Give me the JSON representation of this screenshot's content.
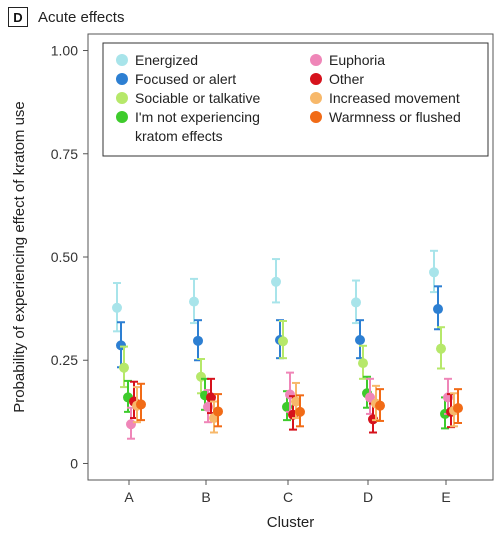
{
  "panel": {
    "badge": "D",
    "title": "Acute effects"
  },
  "chart_data": {
    "type": "scatter",
    "title": "Acute effects",
    "xlabel": "Cluster",
    "ylabel": "Probability of experiencing effect of kratom use",
    "categories": [
      "A",
      "B",
      "C",
      "D",
      "E"
    ],
    "ylim": [
      -0.04,
      1.04
    ],
    "yticks": [
      0,
      0.25,
      0.5,
      0.75,
      1.0
    ],
    "ytick_labels": [
      "0",
      "0.25",
      "0.50",
      "0.75",
      "1.00"
    ],
    "grid": false,
    "legend_position": "top",
    "series": [
      {
        "name": "Energized",
        "color": "#a8e4ea",
        "values": [
          0.377,
          0.392,
          0.44,
          0.39,
          0.463
        ],
        "lower": [
          0.32,
          0.34,
          0.39,
          0.34,
          0.415
        ],
        "upper": [
          0.437,
          0.447,
          0.495,
          0.443,
          0.515
        ]
      },
      {
        "name": "Focused or alert",
        "color": "#2d7fd2",
        "values": [
          0.286,
          0.297,
          0.299,
          0.299,
          0.374
        ],
        "lower": [
          0.233,
          0.25,
          0.255,
          0.255,
          0.325
        ],
        "upper": [
          0.342,
          0.347,
          0.347,
          0.347,
          0.429
        ]
      },
      {
        "name": "Sociable or talkative",
        "color": "#b6e86a",
        "values": [
          0.232,
          0.21,
          0.296,
          0.243,
          0.278
        ],
        "lower": [
          0.185,
          0.17,
          0.255,
          0.205,
          0.23
        ],
        "upper": [
          0.283,
          0.253,
          0.345,
          0.285,
          0.33
        ]
      },
      {
        "name": "I'm not experiencing kratom effects",
        "color": "#3ecb2c",
        "values": [
          0.16,
          0.165,
          0.137,
          0.17,
          0.12
        ],
        "lower": [
          0.125,
          0.13,
          0.105,
          0.135,
          0.085
        ],
        "upper": [
          0.2,
          0.205,
          0.175,
          0.21,
          0.16
        ]
      },
      {
        "name": "Euphoria",
        "color": "#ef86b8",
        "values": [
          0.095,
          0.137,
          0.167,
          0.16,
          0.16
        ],
        "lower": [
          0.06,
          0.1,
          0.125,
          0.12,
          0.12
        ],
        "upper": [
          0.135,
          0.178,
          0.22,
          0.205,
          0.205
        ]
      },
      {
        "name": "Other",
        "color": "#d6121c",
        "values": [
          0.15,
          0.16,
          0.118,
          0.107,
          0.125
        ],
        "lower": [
          0.11,
          0.122,
          0.082,
          0.075,
          0.088
        ],
        "upper": [
          0.198,
          0.205,
          0.163,
          0.145,
          0.168
        ]
      },
      {
        "name": "Increased movement",
        "color": "#f7b86a",
        "values": [
          0.14,
          0.11,
          0.15,
          0.145,
          0.128
        ],
        "lower": [
          0.1,
          0.075,
          0.11,
          0.105,
          0.09
        ],
        "upper": [
          0.185,
          0.15,
          0.195,
          0.188,
          0.17
        ]
      },
      {
        "name": "Warmness or flushed",
        "color": "#f16b17",
        "values": [
          0.143,
          0.126,
          0.125,
          0.14,
          0.134
        ],
        "lower": [
          0.105,
          0.09,
          0.09,
          0.103,
          0.098
        ],
        "upper": [
          0.193,
          0.168,
          0.165,
          0.18,
          0.18
        ]
      }
    ],
    "legend_layout": {
      "left_column": [
        "Energized",
        "Focused or alert",
        "Sociable or talkative",
        "I'm not experiencing kratom effects"
      ],
      "right_column": [
        "Euphoria",
        "Other",
        "Increased movement",
        "Warmness or flushed"
      ],
      "wrapped_label": [
        "I'm not experiencing",
        "kratom effects"
      ]
    }
  }
}
